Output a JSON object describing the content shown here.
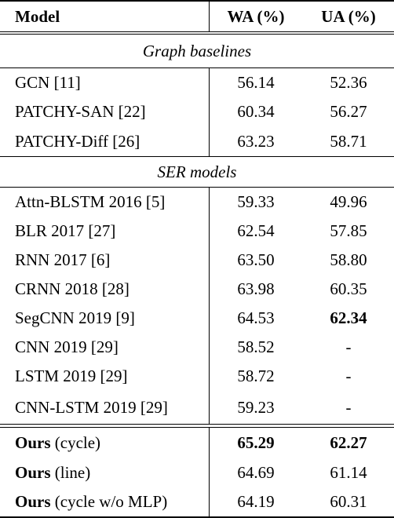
{
  "header": {
    "model": "Model",
    "wa": "WA (%)",
    "ua": "UA (%)"
  },
  "sections": [
    {
      "title": "Graph baselines",
      "rows": [
        {
          "model": "GCN [11]",
          "wa": "56.14",
          "ua": "52.36"
        },
        {
          "model": "PATCHY-SAN [22]",
          "wa": "60.34",
          "ua": "56.27"
        },
        {
          "model": "PATCHY-Diff [26]",
          "wa": "63.23",
          "ua": "58.71"
        }
      ]
    },
    {
      "title": "SER models",
      "rows": [
        {
          "model": "Attn-BLSTM 2016 [5]",
          "wa": "59.33",
          "ua": "49.96"
        },
        {
          "model": "BLR 2017 [27]",
          "wa": "62.54",
          "ua": "57.85"
        },
        {
          "model": "RNN 2017 [6]",
          "wa": "63.50",
          "ua": "58.80"
        },
        {
          "model": "CRNN 2018 [28]",
          "wa": "63.98",
          "ua": "60.35"
        },
        {
          "model": "SegCNN 2019 [9]",
          "wa": "64.53",
          "ua": "62.34"
        },
        {
          "model": "CNN 2019 [29]",
          "wa": "58.52",
          "ua": "-"
        },
        {
          "model": "LSTM 2019 [29]",
          "wa": "58.72",
          "ua": "-"
        },
        {
          "model": "CNN-LSTM 2019 [29]",
          "wa": "59.23",
          "ua": "-"
        }
      ]
    }
  ],
  "ours": [
    {
      "bold": "Ours",
      "rest": " (cycle)",
      "wa": "65.29",
      "ua": "62.27"
    },
    {
      "bold": "Ours",
      "rest": " (line)",
      "wa": "64.69",
      "ua": "61.14"
    },
    {
      "bold": "Ours",
      "rest": " (cycle w/o MLP)",
      "wa": "64.19",
      "ua": "60.31"
    }
  ]
}
